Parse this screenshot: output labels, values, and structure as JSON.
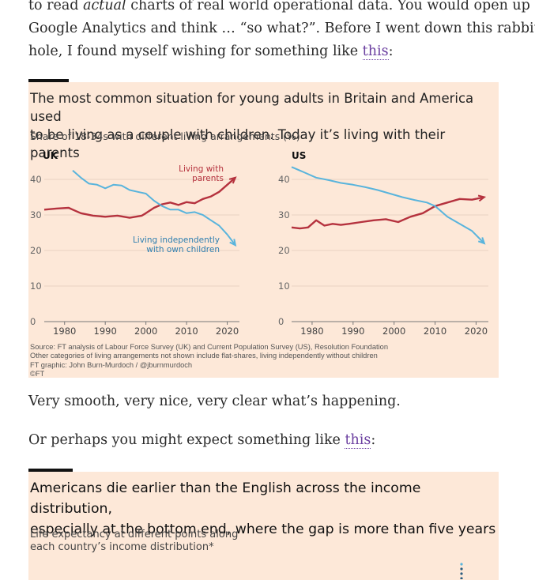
{
  "paragraphs": {
    "intro_line1_pre": "to read ",
    "intro_line1_em": "actual",
    "intro_line1_post": " charts of real world operational data. You would open up",
    "intro_line2": "Google Analytics and think … “so what?”. Before I went down this rabbit",
    "intro_line3_pre": "hole, I found myself wishing for something like ",
    "intro_link": "this",
    "intro_line3_post": ":",
    "smooth": "Very smooth, very nice, very clear what’s happening.",
    "perhaps_pre": "Or perhaps you might expect something like ",
    "perhaps_link": "this",
    "perhaps_post": ":"
  },
  "figure1": {
    "title_line1": "The most common situation for young adults in Britain and America used",
    "title_line2": "to be living as a couple with children. Today it’s living with their parents",
    "subtitle": "Share of 18-34s with different living arrangements (%)",
    "notes": [
      "Source: FT analysis of Labour Force Survey (UK) and Current Population Survey (US), Resolution Foundation",
      "Other categories of living arrangements not shown include flat-shares, living independently without children",
      "FT graphic: John Burn-Murdoch / @jburnmurdoch",
      "©FT"
    ]
  },
  "figure2": {
    "title_line1": "Americans die earlier than the English across the income distribution,",
    "title_line2": "especially at the bottom end, where the gap is more than five years",
    "subtitle_line1": "Life expectancy at different points along",
    "subtitle_line2": "each country’s income distribution*"
  },
  "colors": {
    "parents": "#b5323e",
    "independent": "#59b4dc",
    "panel_bg": "#fde8d8",
    "link": "#6b3fa0"
  },
  "chart_data": [
    {
      "type": "line",
      "title": "UK",
      "ylim": [
        0,
        45
      ],
      "xlim": [
        1975,
        2023
      ],
      "yticks": [
        0,
        10,
        20,
        30,
        40
      ],
      "xticks": [
        1980,
        1990,
        2000,
        2010,
        2020
      ],
      "series": [
        {
          "name": "Living with parents",
          "label": "Living with\nparents",
          "x": [
            1975,
            1978,
            1981,
            1982,
            1984,
            1987,
            1990,
            1993,
            1996,
            1999,
            2000,
            2002,
            2004,
            2006,
            2008,
            2010,
            2012,
            2014,
            2016,
            2018,
            2020,
            2022
          ],
          "values": [
            31.5,
            31.8,
            32,
            31.5,
            30.5,
            29.8,
            29.5,
            29.8,
            29.2,
            29.8,
            30.5,
            32,
            33,
            33.5,
            32.8,
            33.6,
            33.3,
            34.5,
            35.2,
            36.5,
            38.5,
            40.5
          ]
        },
        {
          "name": "Living independently with own children",
          "label": "Living independently\nwith own children",
          "x": [
            1982,
            1984,
            1986,
            1988,
            1990,
            1992,
            1994,
            1996,
            1998,
            2000,
            2002,
            2004,
            2006,
            2008,
            2010,
            2012,
            2014,
            2016,
            2018,
            2020,
            2022
          ],
          "values": [
            42.5,
            40.5,
            38.8,
            38.5,
            37.5,
            38.5,
            38.3,
            37,
            36.5,
            36,
            34,
            32.5,
            31.5,
            31.5,
            30.5,
            30.8,
            30,
            28.5,
            27,
            24.5,
            21.5
          ]
        }
      ]
    },
    {
      "type": "line",
      "title": "US",
      "ylim": [
        0,
        45
      ],
      "xlim": [
        1975,
        2023
      ],
      "yticks": [
        0,
        10,
        20,
        30,
        40
      ],
      "xticks": [
        1980,
        1990,
        2000,
        2010,
        2020
      ],
      "series": [
        {
          "name": "Living with parents",
          "x": [
            1975,
            1977,
            1979,
            1981,
            1983,
            1985,
            1987,
            1989,
            1992,
            1995,
            1998,
            2001,
            2004,
            2007,
            2010,
            2013,
            2016,
            2019,
            2022
          ],
          "values": [
            26.5,
            26.2,
            26.5,
            28.5,
            27,
            27.5,
            27.2,
            27.5,
            28,
            28.5,
            28.8,
            28,
            29.5,
            30.5,
            32.5,
            33.5,
            34.5,
            34.3,
            35
          ]
        },
        {
          "name": "Living independently with own children",
          "x": [
            1975,
            1978,
            1981,
            1984,
            1987,
            1990,
            1993,
            1996,
            1999,
            2002,
            2005,
            2008,
            2010,
            2013,
            2016,
            2019,
            2022
          ],
          "values": [
            43.5,
            42,
            40.5,
            39.8,
            39,
            38.5,
            37.8,
            37,
            36,
            35,
            34.2,
            33.5,
            32.5,
            29.5,
            27.5,
            25.5,
            22
          ]
        }
      ]
    }
  ]
}
